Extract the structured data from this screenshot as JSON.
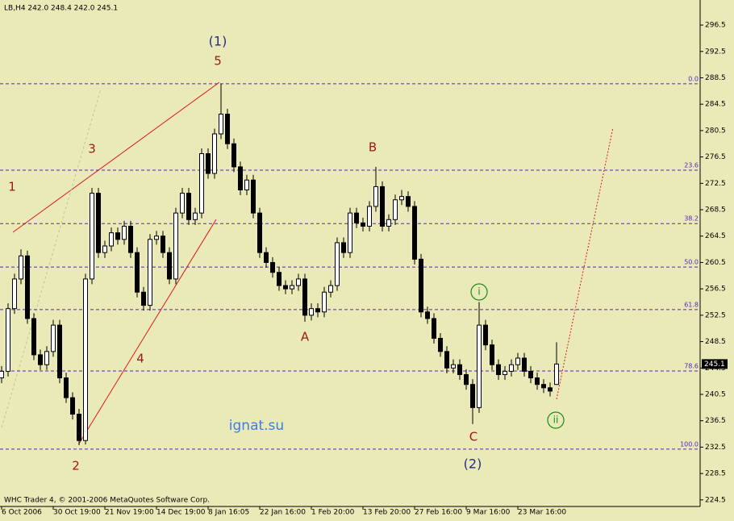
{
  "chart_data": {
    "type": "candlestick",
    "title": "LB,H4  242.0 248.4 242.0 245.1",
    "footer": "WHC Trader 4, © 2001-2006 MetaQuotes Software Corp.",
    "watermark": "ignat.su",
    "categories": [
      "6 Oct 2006",
      null,
      null,
      null,
      null,
      null,
      null,
      null,
      "30 Oct 19:00",
      null,
      null,
      null,
      null,
      null,
      null,
      null,
      "21 Nov 19:00",
      null,
      null,
      null,
      null,
      null,
      null,
      null,
      "14 Dec 19:00",
      null,
      null,
      null,
      null,
      null,
      null,
      null,
      "8 Jan 16:05",
      null,
      null,
      null,
      null,
      null,
      null,
      null,
      "22 Jan 16:00",
      null,
      null,
      null,
      null,
      null,
      null,
      null,
      "1 Feb 20:00",
      null,
      null,
      null,
      null,
      null,
      null,
      null,
      "13 Feb 20:00",
      null,
      null,
      null,
      null,
      null,
      null,
      null,
      "27 Feb 16:00",
      null,
      null,
      null,
      null,
      null,
      null,
      null,
      "9 Mar 16:00",
      null,
      null,
      null,
      null,
      null,
      null,
      null,
      "23 Mar 16:00",
      null,
      null,
      null,
      null,
      null,
      null
    ],
    "open": [
      243,
      244,
      253.5,
      258,
      261.5,
      252,
      246.5,
      245,
      247,
      251,
      243,
      240,
      237.5,
      233.5,
      258,
      271,
      262,
      263,
      265,
      264,
      266,
      262,
      256,
      254,
      264,
      264.5,
      262,
      258,
      268,
      271,
      267,
      268,
      277,
      274,
      280,
      283,
      278.5,
      275,
      271.5,
      273,
      268,
      262,
      260.5,
      259,
      257,
      256.5,
      257,
      258,
      252.5,
      253.5,
      253,
      256,
      257,
      263.5,
      262,
      268,
      266.5,
      266,
      269,
      272,
      266,
      267,
      270,
      270.5,
      269,
      261,
      253,
      252,
      249,
      247,
      244.5,
      245,
      243.5,
      242,
      238.5,
      251,
      248,
      245,
      243.5,
      244,
      245,
      246,
      244,
      243,
      242,
      241.5,
      242.0
    ],
    "high": [
      244.8,
      254.3,
      258.8,
      262.5,
      262.3,
      252.8,
      247.3,
      247.8,
      251.8,
      251.8,
      243.8,
      240.8,
      238.3,
      258.8,
      271.8,
      271.8,
      263.8,
      265.8,
      265.8,
      266.8,
      266.8,
      262.8,
      256.8,
      264.8,
      265.3,
      265.3,
      262.8,
      268.8,
      271.8,
      271.8,
      268.8,
      277.8,
      277.8,
      280.8,
      287.6,
      283.8,
      279.3,
      275.8,
      273.8,
      273.8,
      268.8,
      262.8,
      261.3,
      259.8,
      257.8,
      257.8,
      258.8,
      258.8,
      254.3,
      254.3,
      256.8,
      257.8,
      264.3,
      264.3,
      268.8,
      268.8,
      267.3,
      269.8,
      275,
      272.8,
      267.8,
      270.8,
      271.5,
      271.3,
      269.8,
      261.8,
      253.8,
      252.8,
      249.8,
      247.8,
      245.8,
      245.8,
      244.3,
      242.8,
      254.5,
      251.8,
      248.8,
      245.8,
      244.8,
      245.8,
      246.8,
      246.8,
      244.8,
      243.8,
      242.8,
      242.3,
      248.4
    ],
    "low": [
      242.2,
      243.2,
      252.7,
      257.2,
      251.2,
      245.7,
      244.2,
      244.2,
      246.2,
      242.2,
      239.2,
      236.7,
      232.8,
      232.9,
      257.2,
      261.2,
      261.2,
      262.2,
      263.2,
      263.2,
      261.2,
      255.2,
      253.2,
      253.2,
      263.2,
      261.2,
      257.2,
      257.2,
      267.2,
      266.2,
      266.2,
      267.2,
      273.2,
      273.2,
      279.2,
      277.7,
      274.2,
      270.7,
      270.7,
      267.2,
      261.2,
      259.7,
      258.2,
      256.2,
      255.7,
      255.7,
      256.2,
      251.5,
      251.7,
      252.2,
      252.2,
      255.2,
      256.2,
      261.2,
      261.2,
      265.7,
      265.2,
      265.2,
      268.2,
      265.2,
      265.2,
      266.2,
      269.2,
      268.2,
      260.2,
      252.2,
      251.2,
      248.2,
      246.2,
      243.7,
      243.7,
      242.7,
      241.2,
      236,
      237.7,
      247.2,
      244.2,
      242.7,
      242.7,
      243.2,
      244.2,
      243.2,
      242.2,
      241.2,
      240.7,
      240.2,
      242.0
    ],
    "close": [
      244,
      253.5,
      258,
      261.5,
      252,
      246.5,
      245,
      247,
      251,
      243,
      240,
      237.5,
      233.5,
      258,
      271,
      262,
      263,
      265,
      264,
      266,
      262,
      256,
      254,
      264,
      264.5,
      262,
      258,
      268,
      271,
      267,
      268,
      277,
      274,
      280,
      283,
      278.5,
      275,
      271.5,
      273,
      268,
      262,
      260.5,
      259,
      257,
      256.5,
      257,
      258,
      252.5,
      253.5,
      253,
      256,
      257,
      263.5,
      262,
      268,
      266.5,
      266,
      269,
      272,
      266,
      267,
      270,
      270.5,
      269,
      261,
      253,
      252,
      249,
      247,
      244.5,
      245,
      243.5,
      242,
      238.5,
      251,
      248,
      245,
      243.5,
      244,
      245,
      246,
      244,
      243,
      242,
      241.5,
      241,
      245.1
    ],
    "up_color": "#ffffff",
    "down_color": "#000000",
    "ylim": [
      223.5,
      300.3
    ],
    "yticks": [
      224.5,
      228.5,
      232.5,
      236.5,
      240.5,
      244.5,
      248.5,
      252.5,
      256.5,
      260.5,
      264.5,
      268.5,
      272.5,
      276.5,
      280.5,
      284.5,
      288.5,
      292.5,
      296.5
    ],
    "fib_color": "#5a1ec8",
    "fib_levels": [
      {
        "value": 287.6,
        "label": "0.0"
      },
      {
        "value": 274.5,
        "label": "23.6"
      },
      {
        "value": 266.4,
        "label": "38.2"
      },
      {
        "value": 259.8,
        "label": "50.0"
      },
      {
        "value": 253.35,
        "label": "61.8"
      },
      {
        "value": 244.05,
        "label": "78.6"
      },
      {
        "value": 232.2,
        "label": "100.0"
      }
    ],
    "annotations": [
      "(1)",
      "5",
      "1",
      "3",
      "2",
      "4",
      "B",
      "A",
      "C",
      "(2)",
      "i",
      "ii"
    ]
  }
}
